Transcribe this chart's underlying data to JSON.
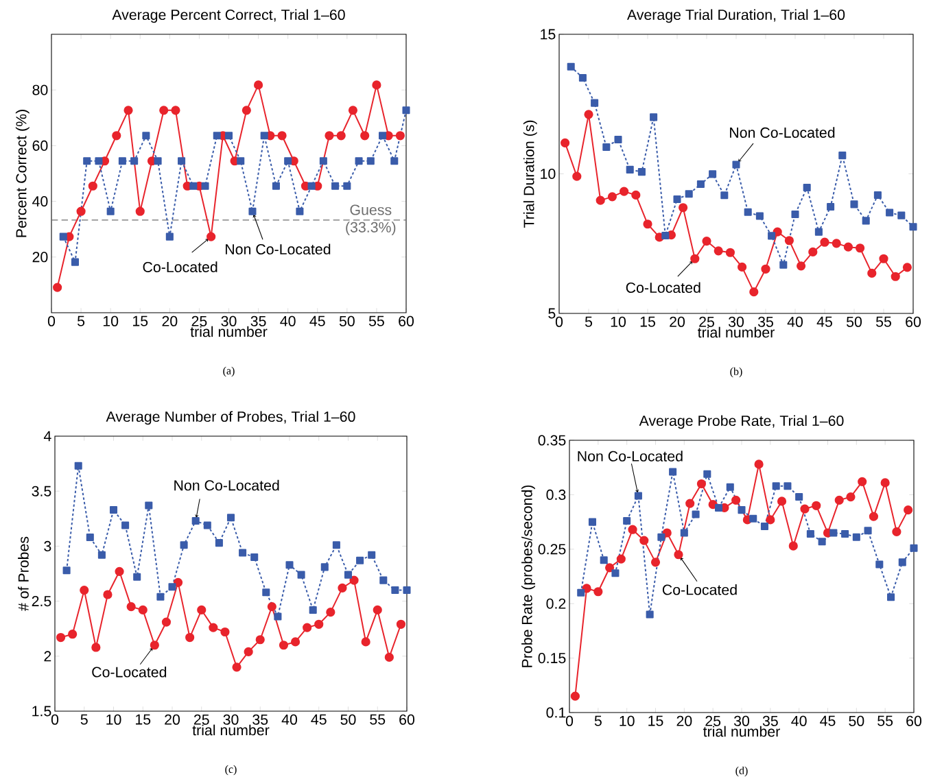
{
  "chart_data": [
    {
      "type": "line",
      "title": "Average Percent Correct, Trial 1–60",
      "xlabel": "trial number",
      "ylabel": "Percent Correct (%)",
      "xlim": [
        0,
        60
      ],
      "xticks": [
        0,
        5,
        10,
        15,
        20,
        25,
        30,
        35,
        40,
        45,
        50,
        55,
        60
      ],
      "ylim": [
        0,
        100
      ],
      "yticks": [
        20,
        40,
        60,
        80
      ],
      "series": [
        {
          "color": "#e8242c",
          "marker": "circle",
          "line_style": "solid",
          "x": [
            1,
            3,
            5,
            7,
            9,
            11,
            13,
            15,
            17,
            19,
            21,
            23,
            25,
            27,
            29,
            31,
            33,
            35,
            37,
            39,
            41,
            43,
            45,
            47,
            49,
            51,
            53,
            55,
            57,
            59
          ],
          "values": [
            9.1,
            27.3,
            36.4,
            45.5,
            54.5,
            63.6,
            72.7,
            36.4,
            54.5,
            72.7,
            72.7,
            45.5,
            45.5,
            27.3,
            63.6,
            54.5,
            72.7,
            81.8,
            63.6,
            63.6,
            54.5,
            45.5,
            45.5,
            63.6,
            63.6,
            72.7,
            63.6,
            81.8,
            63.6,
            63.6
          ]
        },
        {
          "color": "#3a5caa",
          "marker": "square",
          "line_style": "dotted",
          "x": [
            2,
            4,
            6,
            8,
            10,
            12,
            14,
            16,
            18,
            20,
            22,
            24,
            26,
            28,
            30,
            32,
            34,
            36,
            38,
            40,
            42,
            44,
            46,
            48,
            50,
            52,
            54,
            56,
            58,
            60
          ],
          "values": [
            27.3,
            18.2,
            54.5,
            54.5,
            36.4,
            54.5,
            54.5,
            63.6,
            54.5,
            27.3,
            54.5,
            45.5,
            45.5,
            63.6,
            63.6,
            54.5,
            36.4,
            63.6,
            45.5,
            54.5,
            36.4,
            45.5,
            54.5,
            45.5,
            45.5,
            54.5,
            54.5,
            63.6,
            54.5,
            72.7
          ]
        }
      ],
      "ref_lines": [
        {
          "axis": "y",
          "value": 33.3,
          "label": "Guess (33.3%)",
          "color": "#6e6e6e",
          "line_style": "dashed"
        }
      ],
      "annotations": [
        {
          "text": "Co-Located",
          "x": 27,
          "y": 27.3
        },
        {
          "text": "Non Co-Located",
          "x": 34,
          "y": 36.4
        },
        "(a)"
      ]
    },
    {
      "type": "line",
      "title": "Average Trial Duration, Trial 1–60",
      "xlabel": "trial number",
      "ylabel": "Trial Duration (s)",
      "xlim": [
        0,
        60
      ],
      "xticks": [
        0,
        5,
        10,
        15,
        20,
        25,
        30,
        35,
        40,
        45,
        50,
        55,
        60
      ],
      "ylim": [
        5,
        15
      ],
      "yticks": [
        5,
        10,
        15
      ],
      "series": [
        {
          "color": "#e8242c",
          "marker": "circle",
          "line_style": "solid",
          "x": [
            1,
            3,
            5,
            7,
            9,
            11,
            13,
            15,
            17,
            19,
            21,
            23,
            25,
            27,
            29,
            31,
            33,
            35,
            37,
            39,
            41,
            43,
            45,
            47,
            49,
            51,
            53,
            55,
            57,
            59
          ],
          "values": [
            11.11,
            9.91,
            12.13,
            9.05,
            9.18,
            9.37,
            9.24,
            8.2,
            7.73,
            7.81,
            8.79,
            6.96,
            7.59,
            7.24,
            7.18,
            6.66,
            5.77,
            6.59,
            7.92,
            7.61,
            6.7,
            7.2,
            7.55,
            7.51,
            7.38,
            7.34,
            6.44,
            6.96,
            6.32,
            6.65
          ]
        },
        {
          "color": "#3a5caa",
          "marker": "square",
          "line_style": "dotted",
          "x": [
            2,
            4,
            6,
            8,
            10,
            12,
            14,
            16,
            18,
            20,
            22,
            24,
            26,
            28,
            30,
            32,
            34,
            36,
            38,
            40,
            42,
            44,
            46,
            48,
            50,
            52,
            54,
            56,
            58,
            60
          ],
          "values": [
            13.84,
            13.44,
            12.54,
            10.96,
            11.23,
            10.15,
            10.07,
            12.03,
            7.79,
            9.09,
            9.28,
            9.63,
            9.99,
            9.23,
            10.33,
            8.63,
            8.49,
            7.78,
            6.74,
            8.55,
            9.51,
            7.92,
            8.82,
            10.66,
            8.91,
            8.32,
            9.24,
            8.61,
            8.51,
            8.1
          ]
        }
      ],
      "annotations": [
        {
          "text": "Non Co-Located",
          "x": 30,
          "y": 10.33
        },
        {
          "text": "Co-Located",
          "x": 23,
          "y": 6.96
        },
        "(b)"
      ]
    },
    {
      "type": "line",
      "title": "Average Number of Probes, Trial 1–60",
      "xlabel": "trial number",
      "ylabel": "# of Probes",
      "xlim": [
        0,
        60
      ],
      "xticks": [
        0,
        5,
        10,
        15,
        20,
        25,
        30,
        35,
        40,
        45,
        50,
        55,
        60
      ],
      "ylim": [
        1.5,
        4
      ],
      "yticks": [
        1.5,
        2,
        2.5,
        3,
        3.5,
        4
      ],
      "series": [
        {
          "color": "#e8242c",
          "marker": "circle",
          "line_style": "solid",
          "x": [
            1,
            3,
            5,
            7,
            9,
            11,
            13,
            15,
            17,
            19,
            21,
            23,
            25,
            27,
            29,
            31,
            33,
            35,
            37,
            39,
            41,
            43,
            45,
            47,
            49,
            51,
            53,
            55,
            57,
            59
          ],
          "values": [
            2.17,
            2.2,
            2.6,
            2.08,
            2.56,
            2.77,
            2.45,
            2.42,
            2.1,
            2.31,
            2.67,
            2.17,
            2.42,
            2.26,
            2.22,
            1.9,
            2.04,
            2.15,
            2.45,
            2.1,
            2.13,
            2.26,
            2.29,
            2.4,
            2.62,
            2.69,
            2.13,
            2.42,
            1.99,
            2.29
          ]
        },
        {
          "color": "#3a5caa",
          "marker": "square",
          "line_style": "dotted",
          "x": [
            2,
            4,
            6,
            8,
            10,
            12,
            14,
            16,
            18,
            20,
            22,
            24,
            26,
            28,
            30,
            32,
            34,
            36,
            38,
            40,
            42,
            44,
            46,
            48,
            50,
            52,
            54,
            56,
            58,
            60
          ],
          "values": [
            2.78,
            3.73,
            3.08,
            2.92,
            3.33,
            3.19,
            2.72,
            3.37,
            2.54,
            2.63,
            3.01,
            3.23,
            3.19,
            3.03,
            3.26,
            2.94,
            2.9,
            2.58,
            2.36,
            2.83,
            2.74,
            2.42,
            2.81,
            3.01,
            2.74,
            2.87,
            2.92,
            2.69,
            2.6,
            2.6
          ]
        }
      ],
      "annotations": [
        {
          "text": "Non Co-Located",
          "x": 24,
          "y": 3.23
        },
        {
          "text": "Co-Located",
          "x": 17,
          "y": 2.1
        },
        "(c)"
      ]
    },
    {
      "type": "line",
      "title": "Average Probe Rate, Trial 1–60",
      "xlabel": "trial number",
      "ylabel": "Probe Rate (probes/second)",
      "xlim": [
        0,
        60
      ],
      "xticks": [
        0,
        5,
        10,
        15,
        20,
        25,
        30,
        35,
        40,
        45,
        50,
        55,
        60
      ],
      "ylim": [
        0.1,
        0.35
      ],
      "yticks": [
        0.1,
        0.15,
        0.2,
        0.25,
        0.3,
        0.35
      ],
      "series": [
        {
          "color": "#e8242c",
          "marker": "circle",
          "line_style": "solid",
          "x": [
            1,
            3,
            5,
            7,
            9,
            11,
            13,
            15,
            17,
            19,
            21,
            23,
            25,
            27,
            29,
            31,
            33,
            35,
            37,
            39,
            41,
            43,
            45,
            47,
            49,
            51,
            53,
            55,
            57,
            59
          ],
          "values": [
            0.115,
            0.214,
            0.211,
            0.233,
            0.241,
            0.268,
            0.258,
            0.238,
            0.265,
            0.245,
            0.292,
            0.31,
            0.291,
            0.288,
            0.295,
            0.277,
            0.328,
            0.277,
            0.294,
            0.253,
            0.287,
            0.29,
            0.265,
            0.295,
            0.298,
            0.312,
            0.28,
            0.311,
            0.266,
            0.286
          ]
        },
        {
          "color": "#3a5caa",
          "marker": "square",
          "line_style": "dotted",
          "x": [
            2,
            4,
            6,
            8,
            10,
            12,
            14,
            16,
            18,
            20,
            22,
            24,
            26,
            28,
            30,
            32,
            34,
            36,
            38,
            40,
            42,
            44,
            46,
            48,
            50,
            52,
            54,
            56,
            58,
            60
          ],
          "values": [
            0.21,
            0.275,
            0.24,
            0.228,
            0.276,
            0.299,
            0.19,
            0.261,
            0.321,
            0.265,
            0.282,
            0.319,
            0.288,
            0.307,
            0.286,
            0.278,
            0.271,
            0.308,
            0.308,
            0.298,
            0.264,
            0.257,
            0.265,
            0.264,
            0.261,
            0.267,
            0.236,
            0.206,
            0.238,
            0.251
          ]
        }
      ],
      "annotations": [
        {
          "text": "Non Co-Located",
          "x": 12,
          "y": 0.299
        },
        {
          "text": "Co-Located",
          "x": 19,
          "y": 0.245
        },
        "(d)"
      ]
    }
  ]
}
